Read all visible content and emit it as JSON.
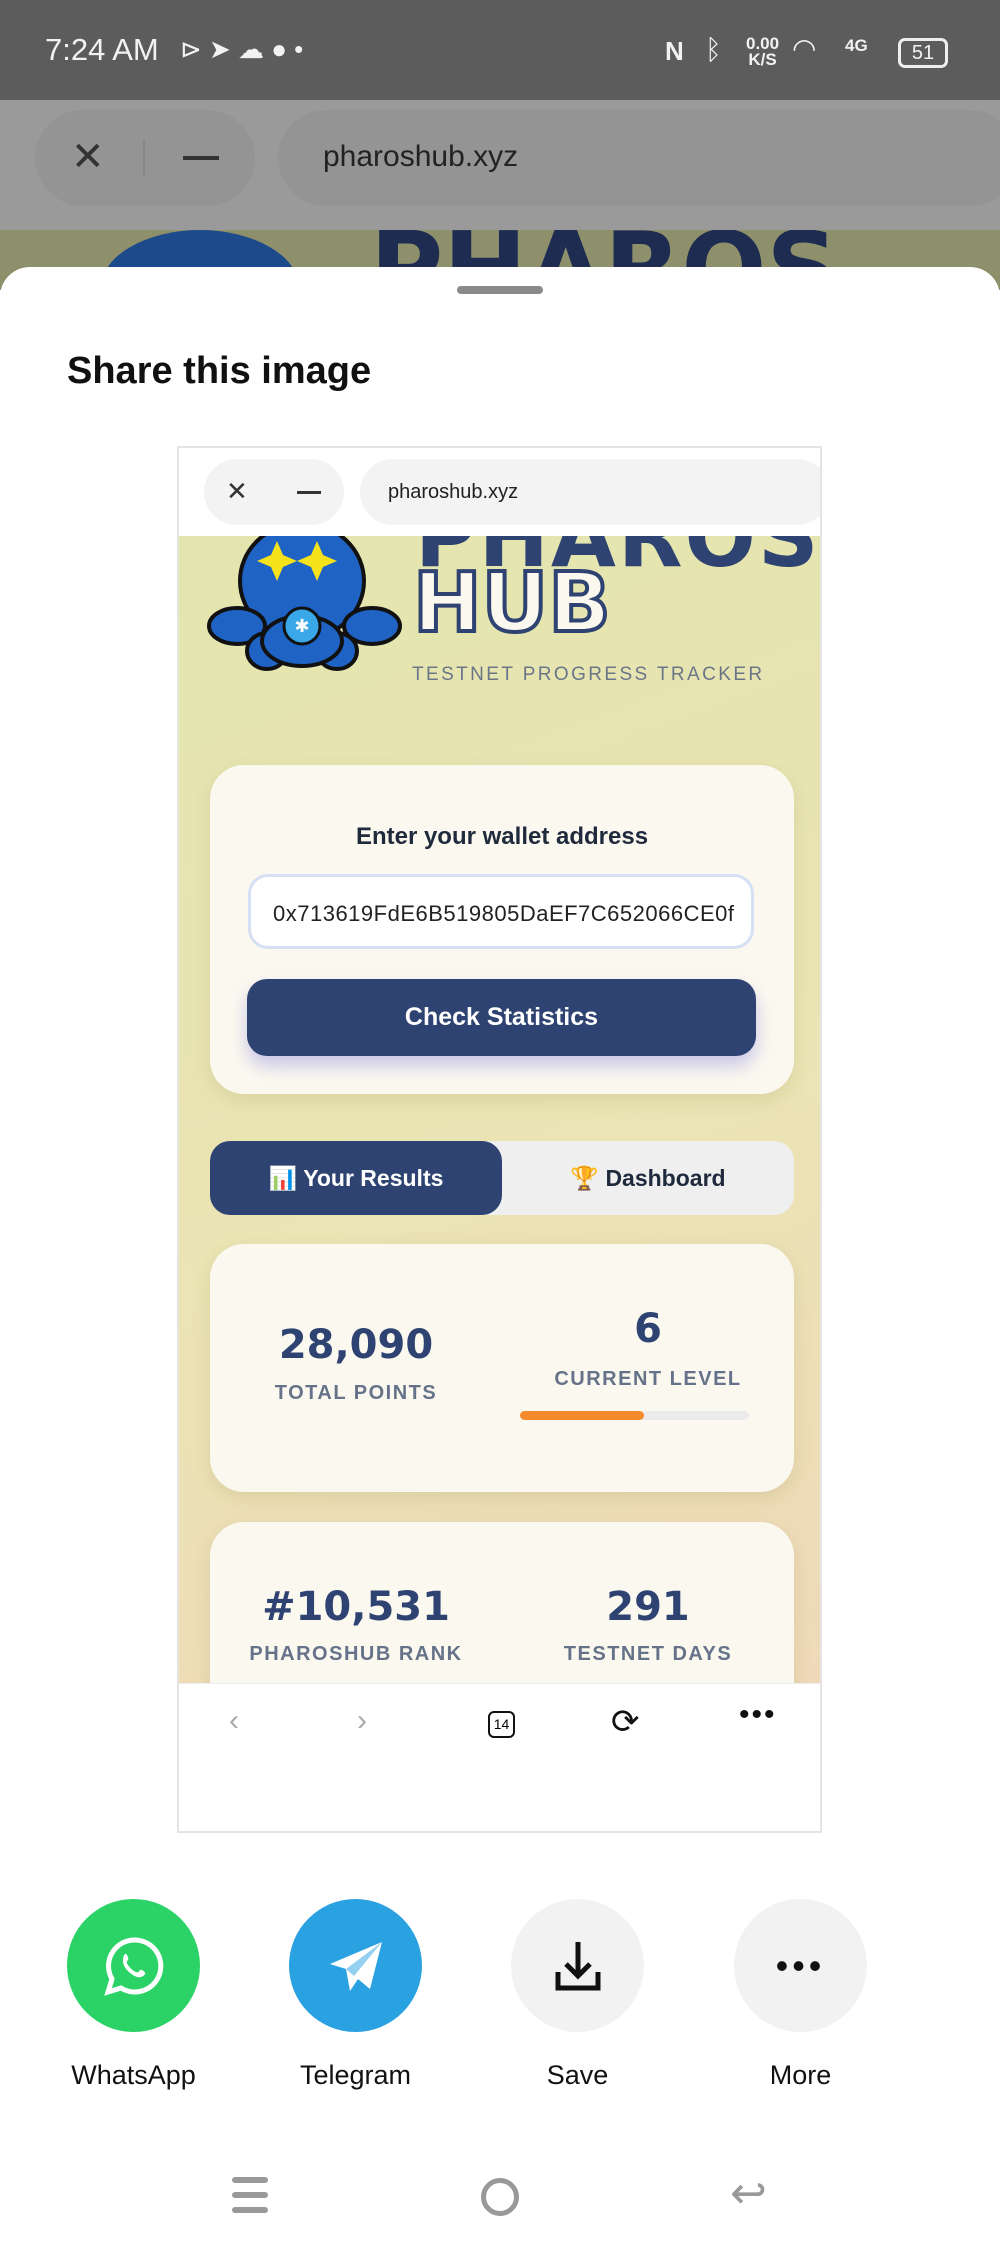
{
  "status_bar": {
    "time": "7:24 AM",
    "net_speed": "0.00",
    "net_unit": "K/S",
    "network": "4G",
    "battery": "51"
  },
  "browser": {
    "url": "pharoshub.xyz"
  },
  "sheet": {
    "title": "Share this image"
  },
  "preview": {
    "url": "pharoshub.xyz",
    "logo": {
      "line1": "PHAROS",
      "line2": "HUB",
      "tagline": "TESTNET PROGRESS TRACKER"
    },
    "wallet": {
      "label": "Enter your wallet address",
      "value": "0x713619FdE6B519805DaEF7C652066CE0f",
      "button": "Check Statistics"
    },
    "tabs": [
      {
        "icon": "📊",
        "label": "Your Results",
        "active": true
      },
      {
        "icon": "🏆",
        "label": "Dashboard",
        "active": false
      }
    ],
    "stats": {
      "total_points": "28,090",
      "total_points_label": "TOTAL POINTS",
      "level": "6",
      "level_label": "CURRENT LEVEL",
      "level_progress": 0.54,
      "rank": "#10,531",
      "rank_label": "PHAROSHUB RANK",
      "days": "291",
      "days_label": "TESTNET DAYS"
    },
    "tab_count": "14",
    "colors": {
      "primary": "#2e4372",
      "progress": "#f58a2d"
    }
  },
  "share_targets": [
    {
      "label": "WhatsApp",
      "color": "#2bd366"
    },
    {
      "label": "Telegram",
      "color": "#2aa1e0"
    },
    {
      "label": "Save",
      "color": "#f2f2f2"
    },
    {
      "label": "More",
      "color": "#f2f2f2"
    }
  ]
}
